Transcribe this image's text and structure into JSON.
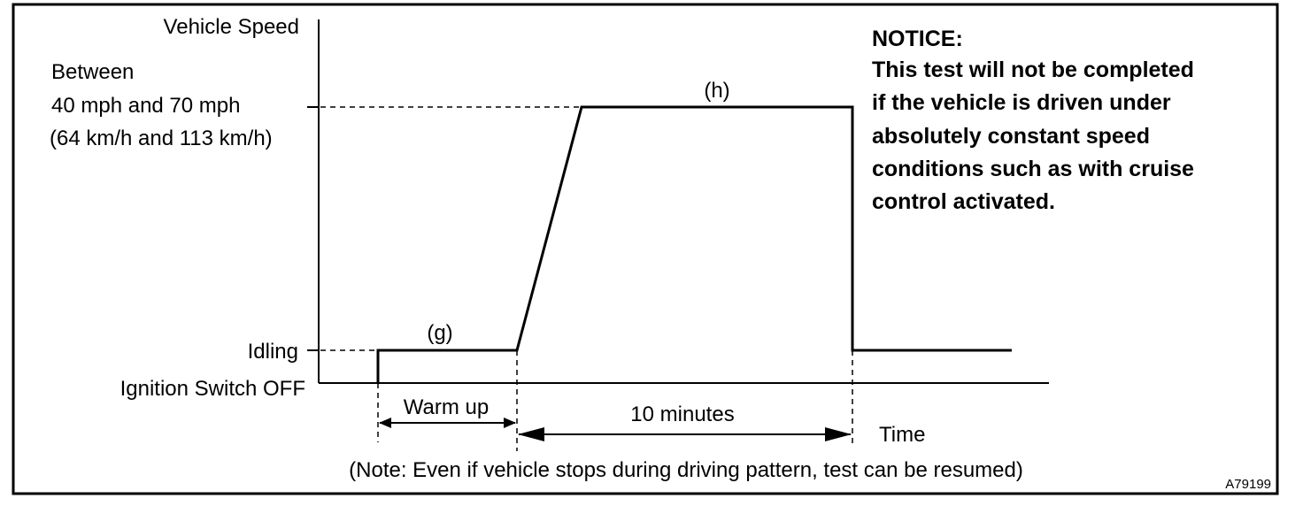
{
  "y_axis_label": "Vehicle Speed",
  "speed_range": {
    "line1": "Between",
    "line2": "40 mph and 70 mph",
    "line3": "(64 km/h and 113 km/h)"
  },
  "idling_label": "Idling",
  "ignition_label": "Ignition Switch OFF",
  "phase_g_label": "(g)",
  "phase_h_label": "(h)",
  "warmup_label": "Warm up",
  "duration_label": "10 minutes",
  "x_axis_label": "Time",
  "note": "(Note: Even if vehicle stops during driving pattern, test can be resumed)",
  "notice": {
    "title": "NOTICE:",
    "lines": [
      "This test will not be completed",
      "if the vehicle is driven under",
      "absolutely constant speed",
      "conditions such as with cruise",
      "control activated."
    ]
  },
  "figure_id": "A79199"
}
